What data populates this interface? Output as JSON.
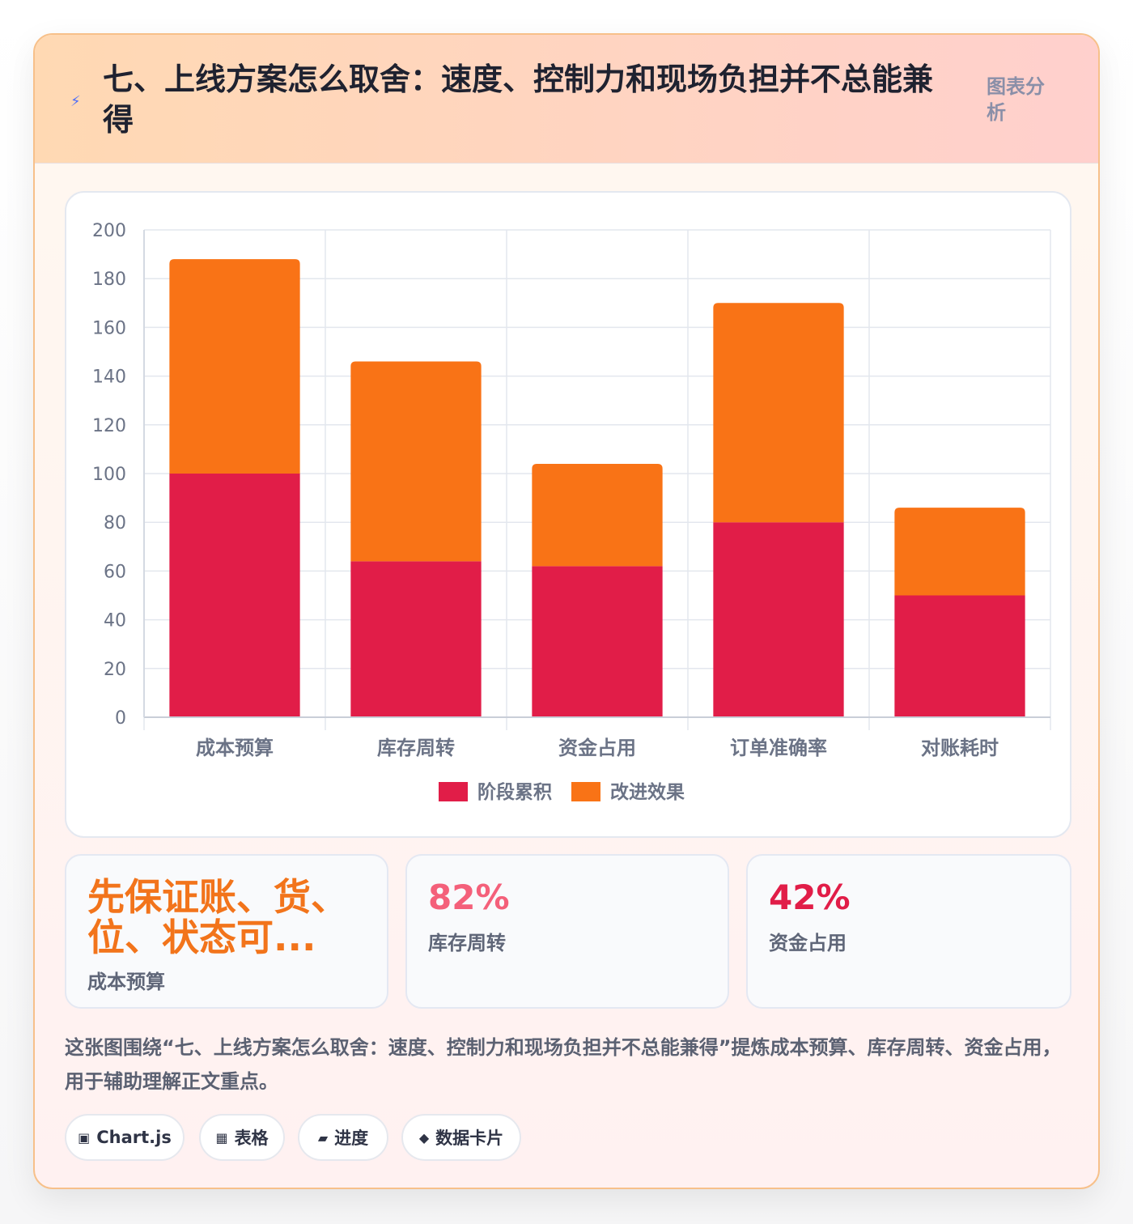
{
  "header": {
    "icon": "lightning-icon",
    "title": "七、上线方案怎么取舍：速度、控制力和现场负担并不总能兼得",
    "tag": "图表分析"
  },
  "chart_data": {
    "type": "bar",
    "stacked": true,
    "categories": [
      "成本预算",
      "库存周转",
      "资金占用",
      "订单准确率",
      "对账耗时"
    ],
    "series": [
      {
        "name": "阶段累积",
        "color": "#e11d48",
        "values": [
          100,
          64,
          62,
          80,
          50
        ]
      },
      {
        "name": "改进效果",
        "color": "#f97316",
        "values": [
          88,
          82,
          42,
          90,
          36
        ]
      }
    ],
    "ylim": [
      0,
      200
    ],
    "yticks": [
      0,
      20,
      40,
      60,
      80,
      100,
      120,
      140,
      160,
      180,
      200
    ],
    "grid": true,
    "legend": "bottom"
  },
  "stats": [
    {
      "value": "先保证账、货、位、状态可...",
      "label": "成本预算",
      "color": "#f2741b"
    },
    {
      "value": "82%",
      "label": "库存周转",
      "color": "#f4607a"
    },
    {
      "value": "42%",
      "label": "资金占用",
      "color": "#e11d48"
    }
  ],
  "description": "这张图围绕“七、上线方案怎么取舍：速度、控制力和现场负担并不总能兼得”提炼成本预算、库存周转、资金占用，用于辅助理解正文重点。",
  "chips": [
    {
      "icon": "chart-icon",
      "glyph": "▣",
      "label": "Chart.js"
    },
    {
      "icon": "table-icon",
      "glyph": "▦",
      "label": "表格"
    },
    {
      "icon": "progress-icon",
      "glyph": "▰",
      "label": "进度"
    },
    {
      "icon": "diamond-icon",
      "glyph": "◆",
      "label": "数据卡片"
    }
  ]
}
